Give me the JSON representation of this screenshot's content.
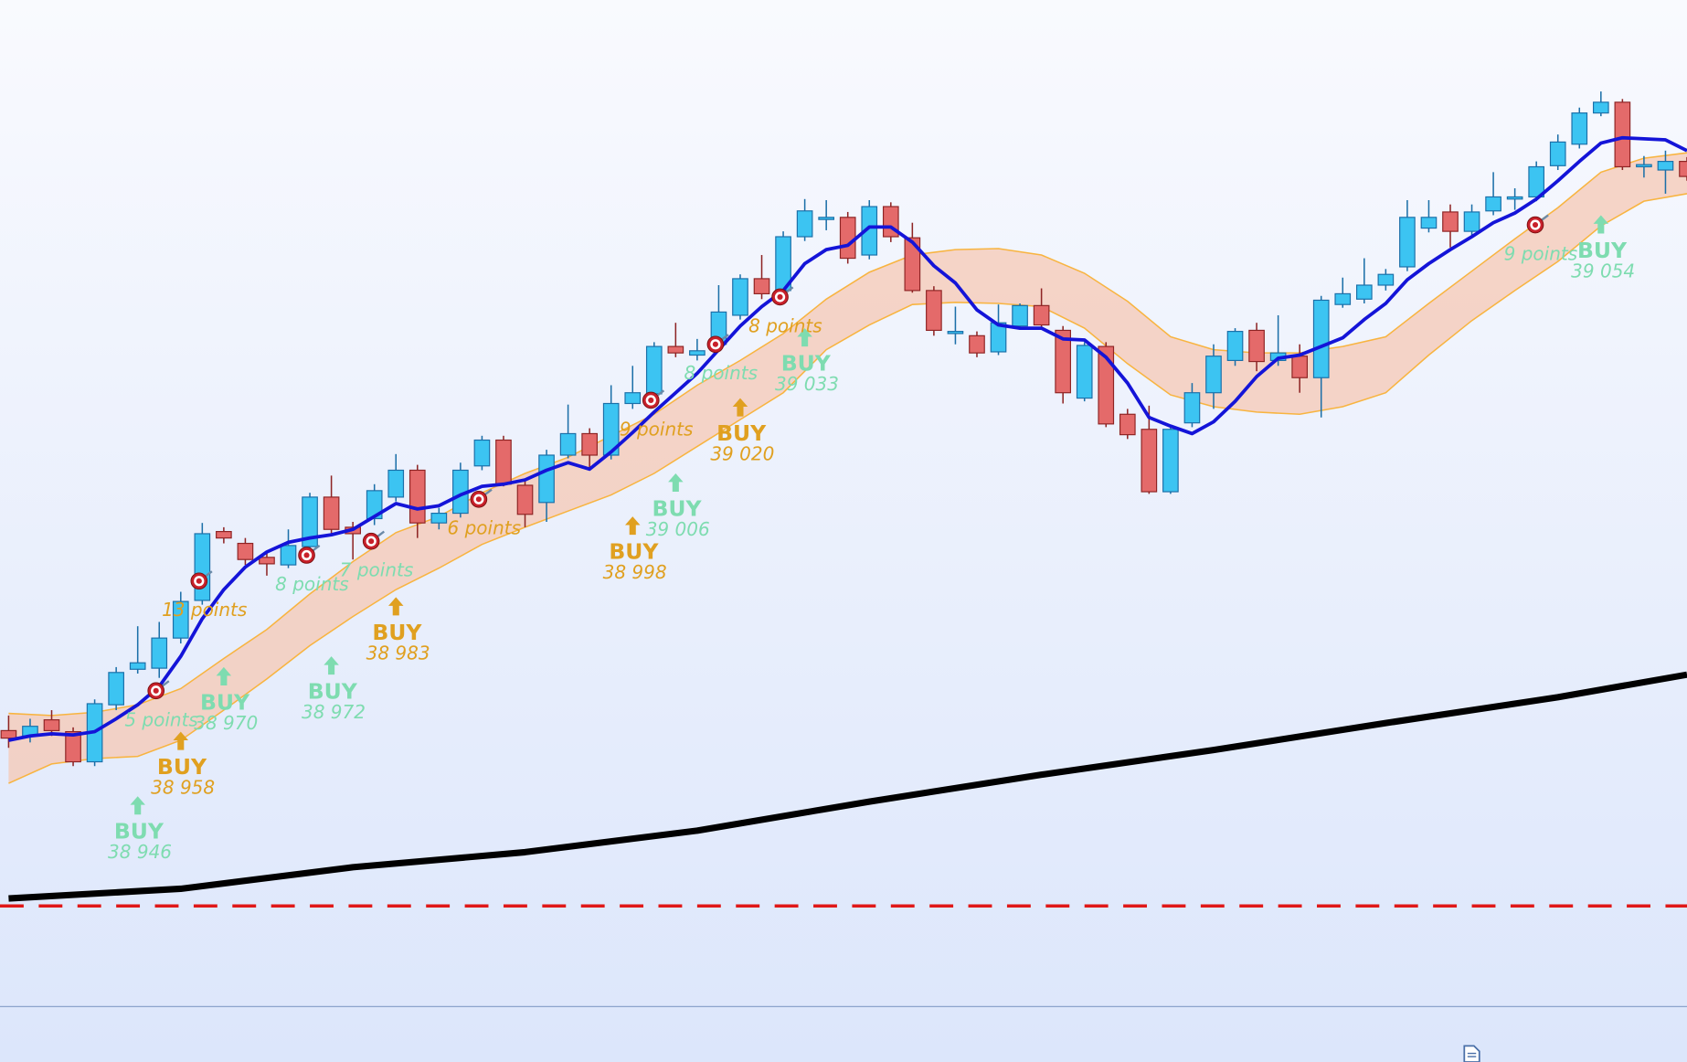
{
  "chart_data": {
    "type": "candlestick",
    "ylim": [
      38909,
      39096
    ],
    "up_color": "#3cc4f2",
    "down_color": "#e46a6a",
    "open": [
      38960.2,
      38959.2,
      38962.2,
      38960,
      38954.4,
      38965,
      38971.6,
      38971.8,
      38977.4,
      38984.4,
      38997.2,
      38995,
      38992.4,
      38991,
      38994.4,
      39003.6,
      38998,
      38999.6,
      39003.6,
      39008.6,
      38998.8,
      39000.6,
      39009.4,
      39014.2,
      39005.8,
      39002.6,
      39011.4,
      39015.4,
      39011.4,
      39021,
      39022.8,
      39031.6,
      39030,
      39032,
      39037.4,
      39044.2,
      39042,
      39052,
      39055.2,
      39055.6,
      39048.6,
      39057.6,
      39051.8,
      39042,
      39034,
      39033.6,
      39030.6,
      39035.4,
      39039.2,
      39034.6,
      39022,
      39031.6,
      39019,
      39016.2,
      39004.6,
      39017.4,
      39023,
      39029,
      39034.6,
      39029,
      39029.8,
      39025.8,
      39039.4,
      39040.4,
      39043,
      39046.4,
      39053.6,
      39056.6,
      39053,
      39056.8,
      39059,
      39059.4,
      39065.2,
      39069.2,
      39075,
      39077,
      39065,
      39064.4,
      39066
    ],
    "high": [
      38963,
      38962.4,
      38964,
      38960.8,
      38966,
      38972,
      38979.6,
      38980.4,
      38986,
      38998.8,
      38998,
      38996,
      38993.6,
      38997.6,
      39004.4,
      39007.6,
      38999,
      39006,
      39011.6,
      39009.6,
      39001.6,
      39010,
      39015,
      39015,
      39007,
      39012.4,
      39020.8,
      39016.4,
      39024.4,
      39028,
      39032.4,
      39036,
      39033,
      39043,
      39045,
      39048.6,
      39053,
      39059,
      39058.8,
      39056.6,
      39058.8,
      39058.4,
      39054.6,
      39042.8,
      39039,
      39034.4,
      39039.4,
      39039.6,
      39042.4,
      39035.4,
      39032.4,
      39032.4,
      39020,
      39020.6,
      39017,
      39024.8,
      39032,
      39035,
      39036,
      39037.4,
      39032,
      39041,
      39044.4,
      39048,
      39046,
      39058.8,
      39058.8,
      39058,
      39058,
      39064,
      39061,
      39066,
      39071,
      39076,
      39079,
      39077.6,
      39067,
      39068,
      39066.8
    ],
    "low": [
      38957,
      38958,
      38959.2,
      38953.6,
      38953.6,
      38964,
      38970.8,
      38970,
      38976.4,
      38983.6,
      38995,
      38991,
      38989,
      38990.4,
      38993.6,
      38996.6,
      38992,
      38998.4,
      39002.8,
      38996,
      38997.6,
      38999.8,
      39008.6,
      39005.6,
      38998,
      38999,
      39010.8,
      39008.6,
      39010.6,
      39020,
      39022,
      39029.6,
      39029,
      39031.2,
      39036.6,
      39040.4,
      39041,
      39051.2,
      39053.2,
      39047,
      39047.8,
      39051,
      39041.6,
      39033.6,
      39032,
      39029.6,
      39030,
      39034.8,
      39035,
      39021,
      39021.4,
      39016.6,
      39014.4,
      39004.2,
      39004.2,
      39016.6,
      39020,
      39028,
      39027,
      39028,
      39023,
      39018.4,
      39038.8,
      39039.6,
      39042,
      39045.6,
      39052.8,
      39050,
      39052.2,
      39056,
      39057,
      39058.6,
      39064.4,
      39068.4,
      39074.4,
      39064.4,
      39063,
      39060,
      39062.4
    ],
    "close": [
      38958.8,
      38961,
      38960.2,
      38954.4,
      38965.2,
      38971,
      38972.8,
      38977.4,
      38984.2,
      38996.8,
      38996,
      38992,
      38991.2,
      38994.6,
      39003.6,
      38997.6,
      38996.8,
      39004.8,
      39008.6,
      38998.8,
      39000.6,
      39008.6,
      39014.2,
      39006,
      39000.4,
      39011.4,
      39015.4,
      39011.4,
      39021,
      39023,
      39031.6,
      39030.4,
      39030.8,
      39038,
      39044.2,
      39041.4,
      39052,
      39056.8,
      39055.6,
      39048,
      39057.6,
      39052,
      39042,
      39034.6,
      39034.4,
      39030.4,
      39036,
      39039.2,
      39035.6,
      39023,
      39031.8,
      39017.2,
      39015.2,
      39004.6,
      39016.2,
      39023,
      39029.8,
      39034.4,
      39028.8,
      39030.4,
      39025.8,
      39040.2,
      39041.4,
      39043,
      39045,
      39055.6,
      39055.6,
      39053,
      39056.6,
      39059.4,
      39059.4,
      39065,
      39069.6,
      39075,
      39077,
      39065,
      39065.4,
      39066,
      39063.2
    ],
    "ma": {
      "color": "#1414d8",
      "values": [
        38958.4,
        38959.2,
        38959.6,
        38959.4,
        38960,
        38962.4,
        38965,
        38968.4,
        38974,
        38981,
        38986.4,
        38990.6,
        38993.4,
        38995.2,
        38996,
        38996.6,
        38997.6,
        39000,
        39002.4,
        39001.4,
        39002,
        39004,
        39005.6,
        39006,
        39006.8,
        39008.6,
        39010,
        39008.8,
        39012,
        39015.6,
        39019.4,
        39023,
        39026.6,
        39031,
        39035.4,
        39039,
        39042,
        39047,
        39049.6,
        39050.4,
        39053.8,
        39053.8,
        39051,
        39046.6,
        39043.4,
        39038.4,
        39035.6,
        39035,
        39035,
        39033,
        39032.8,
        39029.6,
        39024.8,
        39018.4,
        39016.8,
        39015.4,
        39017.6,
        39021.4,
        39026,
        39029.4,
        39030,
        39031.6,
        39033.2,
        39036.6,
        39039.6,
        39044,
        39047,
        39049.6,
        39052,
        39054.6,
        39056.4,
        39059,
        39062.4,
        39066,
        39069.4,
        39070.4,
        39070.2,
        39070,
        39068
      ]
    },
    "band": {
      "color": "#f6c8b4",
      "edge_color": "#f8b440",
      "x": [
        0,
        2,
        4,
        6,
        8,
        10,
        12,
        14,
        16,
        18,
        20,
        22,
        24,
        26,
        28,
        30,
        32,
        34,
        36,
        38,
        40,
        42,
        44,
        46,
        48,
        50,
        52,
        54,
        56,
        58,
        60,
        62,
        64,
        66,
        68,
        70,
        72,
        74,
        76,
        78
      ],
      "upper": [
        38963.4,
        38963,
        38963.6,
        38965,
        38968,
        38973.6,
        38979,
        38985.6,
        38991.6,
        38997,
        39000,
        39004.4,
        39008,
        39011,
        39015,
        39019,
        39024.4,
        39029,
        39034,
        39040.4,
        39045.4,
        39048.6,
        39049.6,
        39049.8,
        39048.6,
        39045.2,
        39040,
        39033.4,
        39031,
        39030.4,
        39030.4,
        39031.6,
        39033.4,
        39039.6,
        39045.6,
        39051.6,
        39057.4,
        39064,
        39066.6,
        39067.6
      ],
      "lower": [
        38950.4,
        38954,
        38955,
        38955.4,
        38958.4,
        38964,
        38969.8,
        38976,
        38981.4,
        38986.4,
        38990.4,
        38994.8,
        38998,
        39001,
        39004,
        39008,
        39013,
        39018,
        39023,
        39031,
        39035.6,
        39039.4,
        39039.8,
        39039.6,
        39039,
        39035,
        39028.4,
        39022.6,
        39020.4,
        39019.4,
        39019,
        39020.4,
        39023,
        39030,
        39036.4,
        39042,
        39047.4,
        39054,
        39058.6,
        39060
      ]
    },
    "slow": {
      "color": "#000000",
      "x": [
        0,
        8,
        16,
        24,
        32,
        40,
        48,
        56,
        64,
        72,
        78
      ],
      "values": [
        38929,
        38930.8,
        38934.8,
        38937.6,
        38941.6,
        38947,
        38952,
        38956.6,
        38961.6,
        38966.4,
        38970.6
      ]
    },
    "hline": {
      "value": 38927.6,
      "color": "#e01818",
      "dashed": true
    },
    "signals": [
      {
        "x": 6,
        "label": "BUY",
        "price": 38946,
        "price_label": "38 946",
        "color": "#7edcb0"
      },
      {
        "x": 8,
        "label": "BUY",
        "price": 38958,
        "price_label": "38 958",
        "color": "#e0a020"
      },
      {
        "x": 10,
        "label": "BUY",
        "price": 38970,
        "price_label": "38 970",
        "color": "#7edcb0"
      },
      {
        "x": 15,
        "label": "BUY",
        "price": 38972,
        "price_label": "38 972",
        "color": "#7edcb0"
      },
      {
        "x": 18,
        "label": "BUY",
        "price": 38983,
        "price_label": "38 983",
        "color": "#e0a020"
      },
      {
        "x": 29,
        "label": "BUY",
        "price": 38998,
        "price_label": "38 998",
        "color": "#e0a020"
      },
      {
        "x": 31,
        "label": "BUY",
        "price": 39006,
        "price_label": "39 006",
        "color": "#7edcb0"
      },
      {
        "x": 34,
        "label": "BUY",
        "price": 39020,
        "price_label": "39 020",
        "color": "#e0a020"
      },
      {
        "x": 37,
        "label": "BUY",
        "price": 39033,
        "price_label": "39 033",
        "color": "#7edcb0"
      },
      {
        "x": 74,
        "label": "BUY",
        "price": 39054,
        "price_label": "39 054",
        "color": "#7edcb0"
      }
    ],
    "targets": [
      {
        "x": 6.85,
        "price": 38967.6,
        "text": "5 points",
        "color": "#7edcb0"
      },
      {
        "x": 8.85,
        "price": 38988,
        "text": "13 points",
        "color": "#e0a020"
      },
      {
        "x": 13.85,
        "price": 38992.8,
        "text": "8 points",
        "color": "#7edcb0"
      },
      {
        "x": 16.85,
        "price": 38995.4,
        "text": "7 points",
        "color": "#7edcb0"
      },
      {
        "x": 21.85,
        "price": 39003.2,
        "text": "6 points",
        "color": "#e0a020"
      },
      {
        "x": 29.85,
        "price": 39021.6,
        "text": "9 points",
        "color": "#e0a020"
      },
      {
        "x": 32.85,
        "price": 39032,
        "text": "8 points",
        "color": "#7edcb0"
      },
      {
        "x": 35.85,
        "price": 39040.8,
        "text": "8 points",
        "color": "#e0a020"
      },
      {
        "x": 70.95,
        "price": 39054.2,
        "text": "9 points",
        "color": "#7edcb0"
      }
    ]
  }
}
